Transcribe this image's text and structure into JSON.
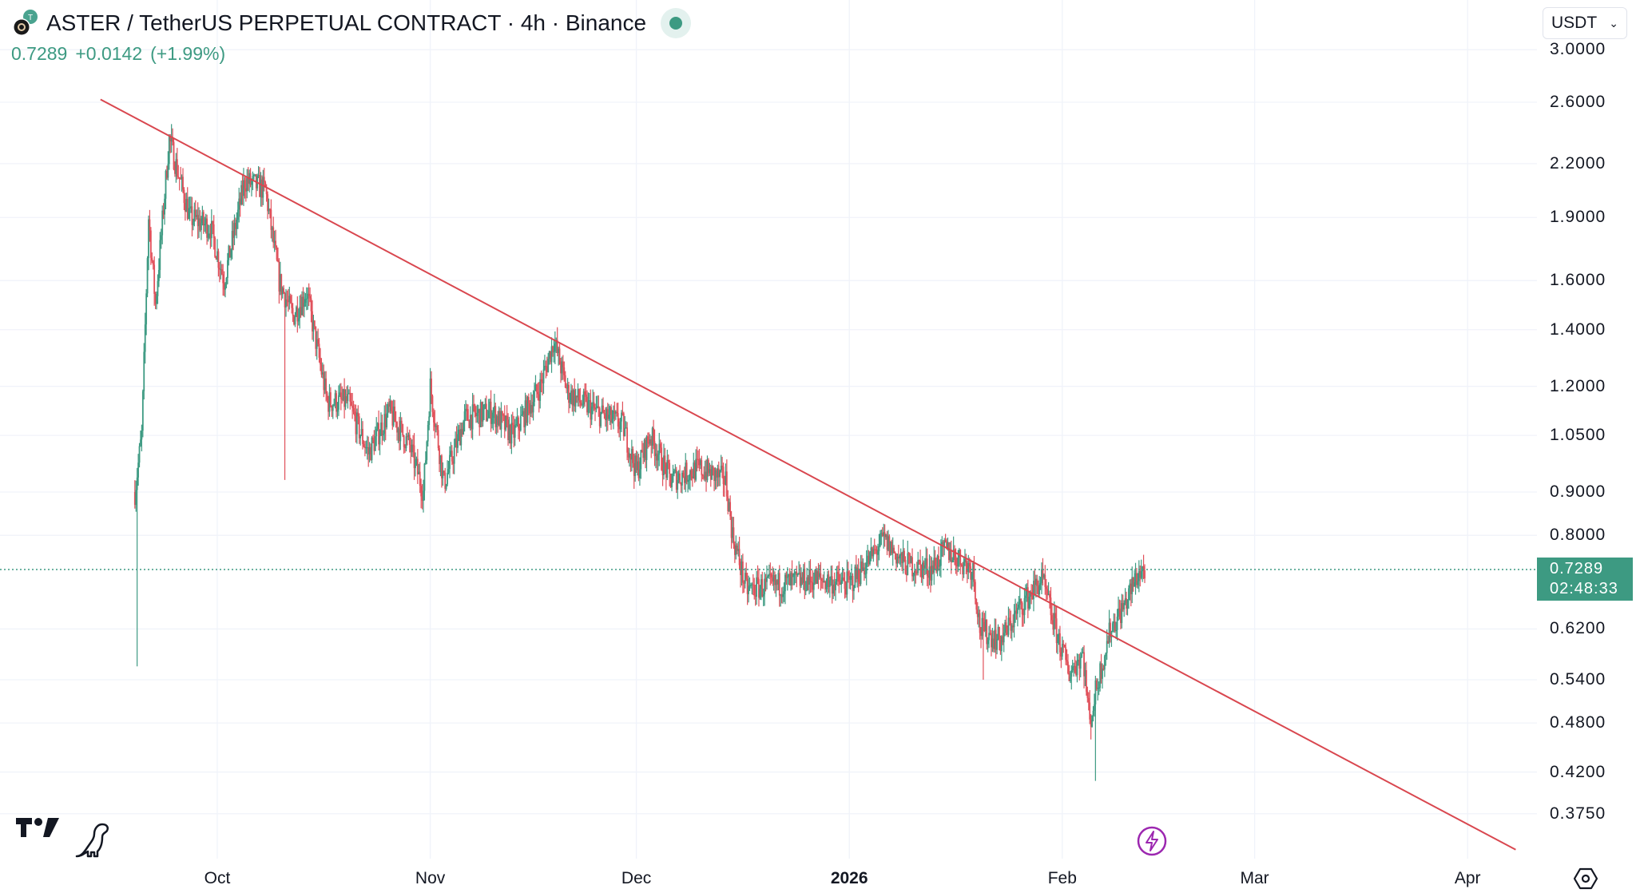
{
  "header": {
    "title": "ASTER / TetherUS PERPETUAL CONTRACT · 4h · Binance",
    "last": "0.7289",
    "change": "+0.0142",
    "change_pct": "(+1.99%)"
  },
  "currency_selector": {
    "value": "USDT"
  },
  "last_price_label": {
    "price": "0.7289",
    "countdown": "02:48:33"
  },
  "colors": {
    "up": "#3d9a82",
    "down": "#e0505a",
    "trendline": "#d9474f",
    "grid": "#f0f3fa",
    "accent": "#3d9a82"
  },
  "chart_data": {
    "type": "candlestick",
    "symbol": "ASTERUSDT.P",
    "interval": "4h",
    "scale": "log",
    "price_ticks": [
      "3.0000",
      "2.6000",
      "2.2000",
      "1.9000",
      "1.6000",
      "1.4000",
      "1.2000",
      "1.0500",
      "0.9000",
      "0.8000",
      "0.6200",
      "0.5400",
      "0.4800",
      "0.4200",
      "0.3750"
    ],
    "time_ticks": [
      {
        "label": "Oct",
        "date": "2025-10-01",
        "bold": false
      },
      {
        "label": "Nov",
        "date": "2025-11-01",
        "bold": false
      },
      {
        "label": "Dec",
        "date": "2025-12-01",
        "bold": false
      },
      {
        "label": "2026",
        "date": "2026-01-01",
        "bold": true
      },
      {
        "label": "Feb",
        "date": "2026-02-01",
        "bold": false
      },
      {
        "label": "Mar",
        "date": "2026-03-01",
        "bold": false
      },
      {
        "label": "Apr",
        "date": "2026-04-01",
        "bold": false
      }
    ],
    "approx_path": [
      [
        "2025-09-19",
        0.9
      ],
      [
        "2025-09-20",
        1.05
      ],
      [
        "2025-09-21",
        1.9
      ],
      [
        "2025-09-22",
        1.5
      ],
      [
        "2025-09-24",
        2.35
      ],
      [
        "2025-09-27",
        1.9
      ],
      [
        "2025-09-30",
        1.85
      ],
      [
        "2025-10-02",
        1.6
      ],
      [
        "2025-10-05",
        2.1
      ],
      [
        "2025-10-08",
        2.05
      ],
      [
        "2025-10-10",
        1.6
      ],
      [
        "2025-10-12",
        1.45
      ],
      [
        "2025-10-14",
        1.55
      ],
      [
        "2025-10-17",
        1.15
      ],
      [
        "2025-10-20",
        1.15
      ],
      [
        "2025-10-23",
        1.0
      ],
      [
        "2025-10-26",
        1.12
      ],
      [
        "2025-10-29",
        1.02
      ],
      [
        "2025-10-31",
        0.9
      ],
      [
        "2025-11-01",
        1.2
      ],
      [
        "2025-11-03",
        0.92
      ],
      [
        "2025-11-06",
        1.1
      ],
      [
        "2025-11-10",
        1.12
      ],
      [
        "2025-11-13",
        1.05
      ],
      [
        "2025-11-17",
        1.2
      ],
      [
        "2025-11-19",
        1.36
      ],
      [
        "2025-11-21",
        1.18
      ],
      [
        "2025-11-25",
        1.12
      ],
      [
        "2025-11-29",
        1.08
      ],
      [
        "2025-12-01",
        0.95
      ],
      [
        "2025-12-03",
        1.05
      ],
      [
        "2025-12-06",
        0.93
      ],
      [
        "2025-12-10",
        0.96
      ],
      [
        "2025-12-14",
        0.93
      ],
      [
        "2025-12-15",
        0.8
      ],
      [
        "2025-12-17",
        0.69
      ],
      [
        "2025-12-22",
        0.7
      ],
      [
        "2025-12-27",
        0.71
      ],
      [
        "2026-01-01",
        0.7
      ],
      [
        "2026-01-04",
        0.75
      ],
      [
        "2026-01-06",
        0.79
      ],
      [
        "2026-01-09",
        0.74
      ],
      [
        "2026-01-13",
        0.73
      ],
      [
        "2026-01-15",
        0.77
      ],
      [
        "2026-01-19",
        0.73
      ],
      [
        "2026-01-20",
        0.62
      ],
      [
        "2026-01-23",
        0.6
      ],
      [
        "2026-01-26",
        0.66
      ],
      [
        "2026-01-29",
        0.71
      ],
      [
        "2026-01-31",
        0.62
      ],
      [
        "2026-02-02",
        0.55
      ],
      [
        "2026-02-04",
        0.58
      ],
      [
        "2026-02-05",
        0.48
      ],
      [
        "2026-02-06",
        0.53
      ],
      [
        "2026-02-08",
        0.62
      ],
      [
        "2026-02-10",
        0.66
      ],
      [
        "2026-02-12",
        0.72
      ],
      [
        "2026-02-13",
        0.7289
      ]
    ],
    "extremes": {
      "ath_high": 2.45,
      "spike_low_sep19": 0.56,
      "wick_low_oct10": 0.93,
      "wick_low_jan20": 0.54,
      "wick_low_feb05": 0.41
    },
    "trendline": {
      "from": [
        "2025-09-14",
        2.62
      ],
      "to": [
        "2026-04-08",
        0.34
      ]
    },
    "last_price": 0.7289
  }
}
